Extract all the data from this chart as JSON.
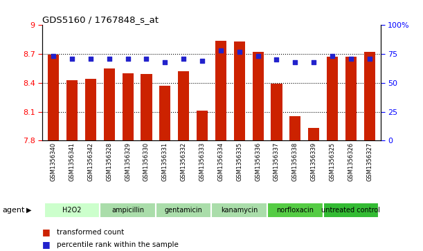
{
  "title": "GDS5160 / 1767848_s_at",
  "samples": [
    "GSM1356340",
    "GSM1356341",
    "GSM1356342",
    "GSM1356328",
    "GSM1356329",
    "GSM1356330",
    "GSM1356331",
    "GSM1356332",
    "GSM1356333",
    "GSM1356334",
    "GSM1356335",
    "GSM1356336",
    "GSM1356337",
    "GSM1356338",
    "GSM1356339",
    "GSM1356325",
    "GSM1356326",
    "GSM1356327"
  ],
  "bar_values": [
    8.69,
    8.43,
    8.44,
    8.55,
    8.5,
    8.49,
    8.37,
    8.52,
    8.11,
    8.84,
    8.83,
    8.72,
    8.39,
    8.05,
    7.93,
    8.67,
    8.67,
    8.72
  ],
  "percentile_values": [
    73,
    71,
    71,
    71,
    71,
    71,
    68,
    71,
    69,
    78,
    77,
    73,
    70,
    68,
    68,
    73,
    71,
    71
  ],
  "agents": [
    {
      "name": "H2O2",
      "start": 0,
      "end": 3,
      "color": "#ccffcc"
    },
    {
      "name": "ampicillin",
      "start": 3,
      "end": 6,
      "color": "#aaddaa"
    },
    {
      "name": "gentamicin",
      "start": 6,
      "end": 9,
      "color": "#aaddaa"
    },
    {
      "name": "kanamycin",
      "start": 9,
      "end": 12,
      "color": "#aaddaa"
    },
    {
      "name": "norfloxacin",
      "start": 12,
      "end": 15,
      "color": "#55cc44"
    },
    {
      "name": "untreated control",
      "start": 15,
      "end": 18,
      "color": "#33bb33"
    }
  ],
  "bar_color": "#cc2200",
  "dot_color": "#2222cc",
  "ylim_left": [
    7.8,
    9.0
  ],
  "ylim_right": [
    0,
    100
  ],
  "yticks_left": [
    7.8,
    8.1,
    8.4,
    8.7,
    9.0
  ],
  "yticks_right": [
    0,
    25,
    50,
    75,
    100
  ],
  "grid_values": [
    8.1,
    8.4,
    8.7
  ],
  "bar_width": 0.6
}
